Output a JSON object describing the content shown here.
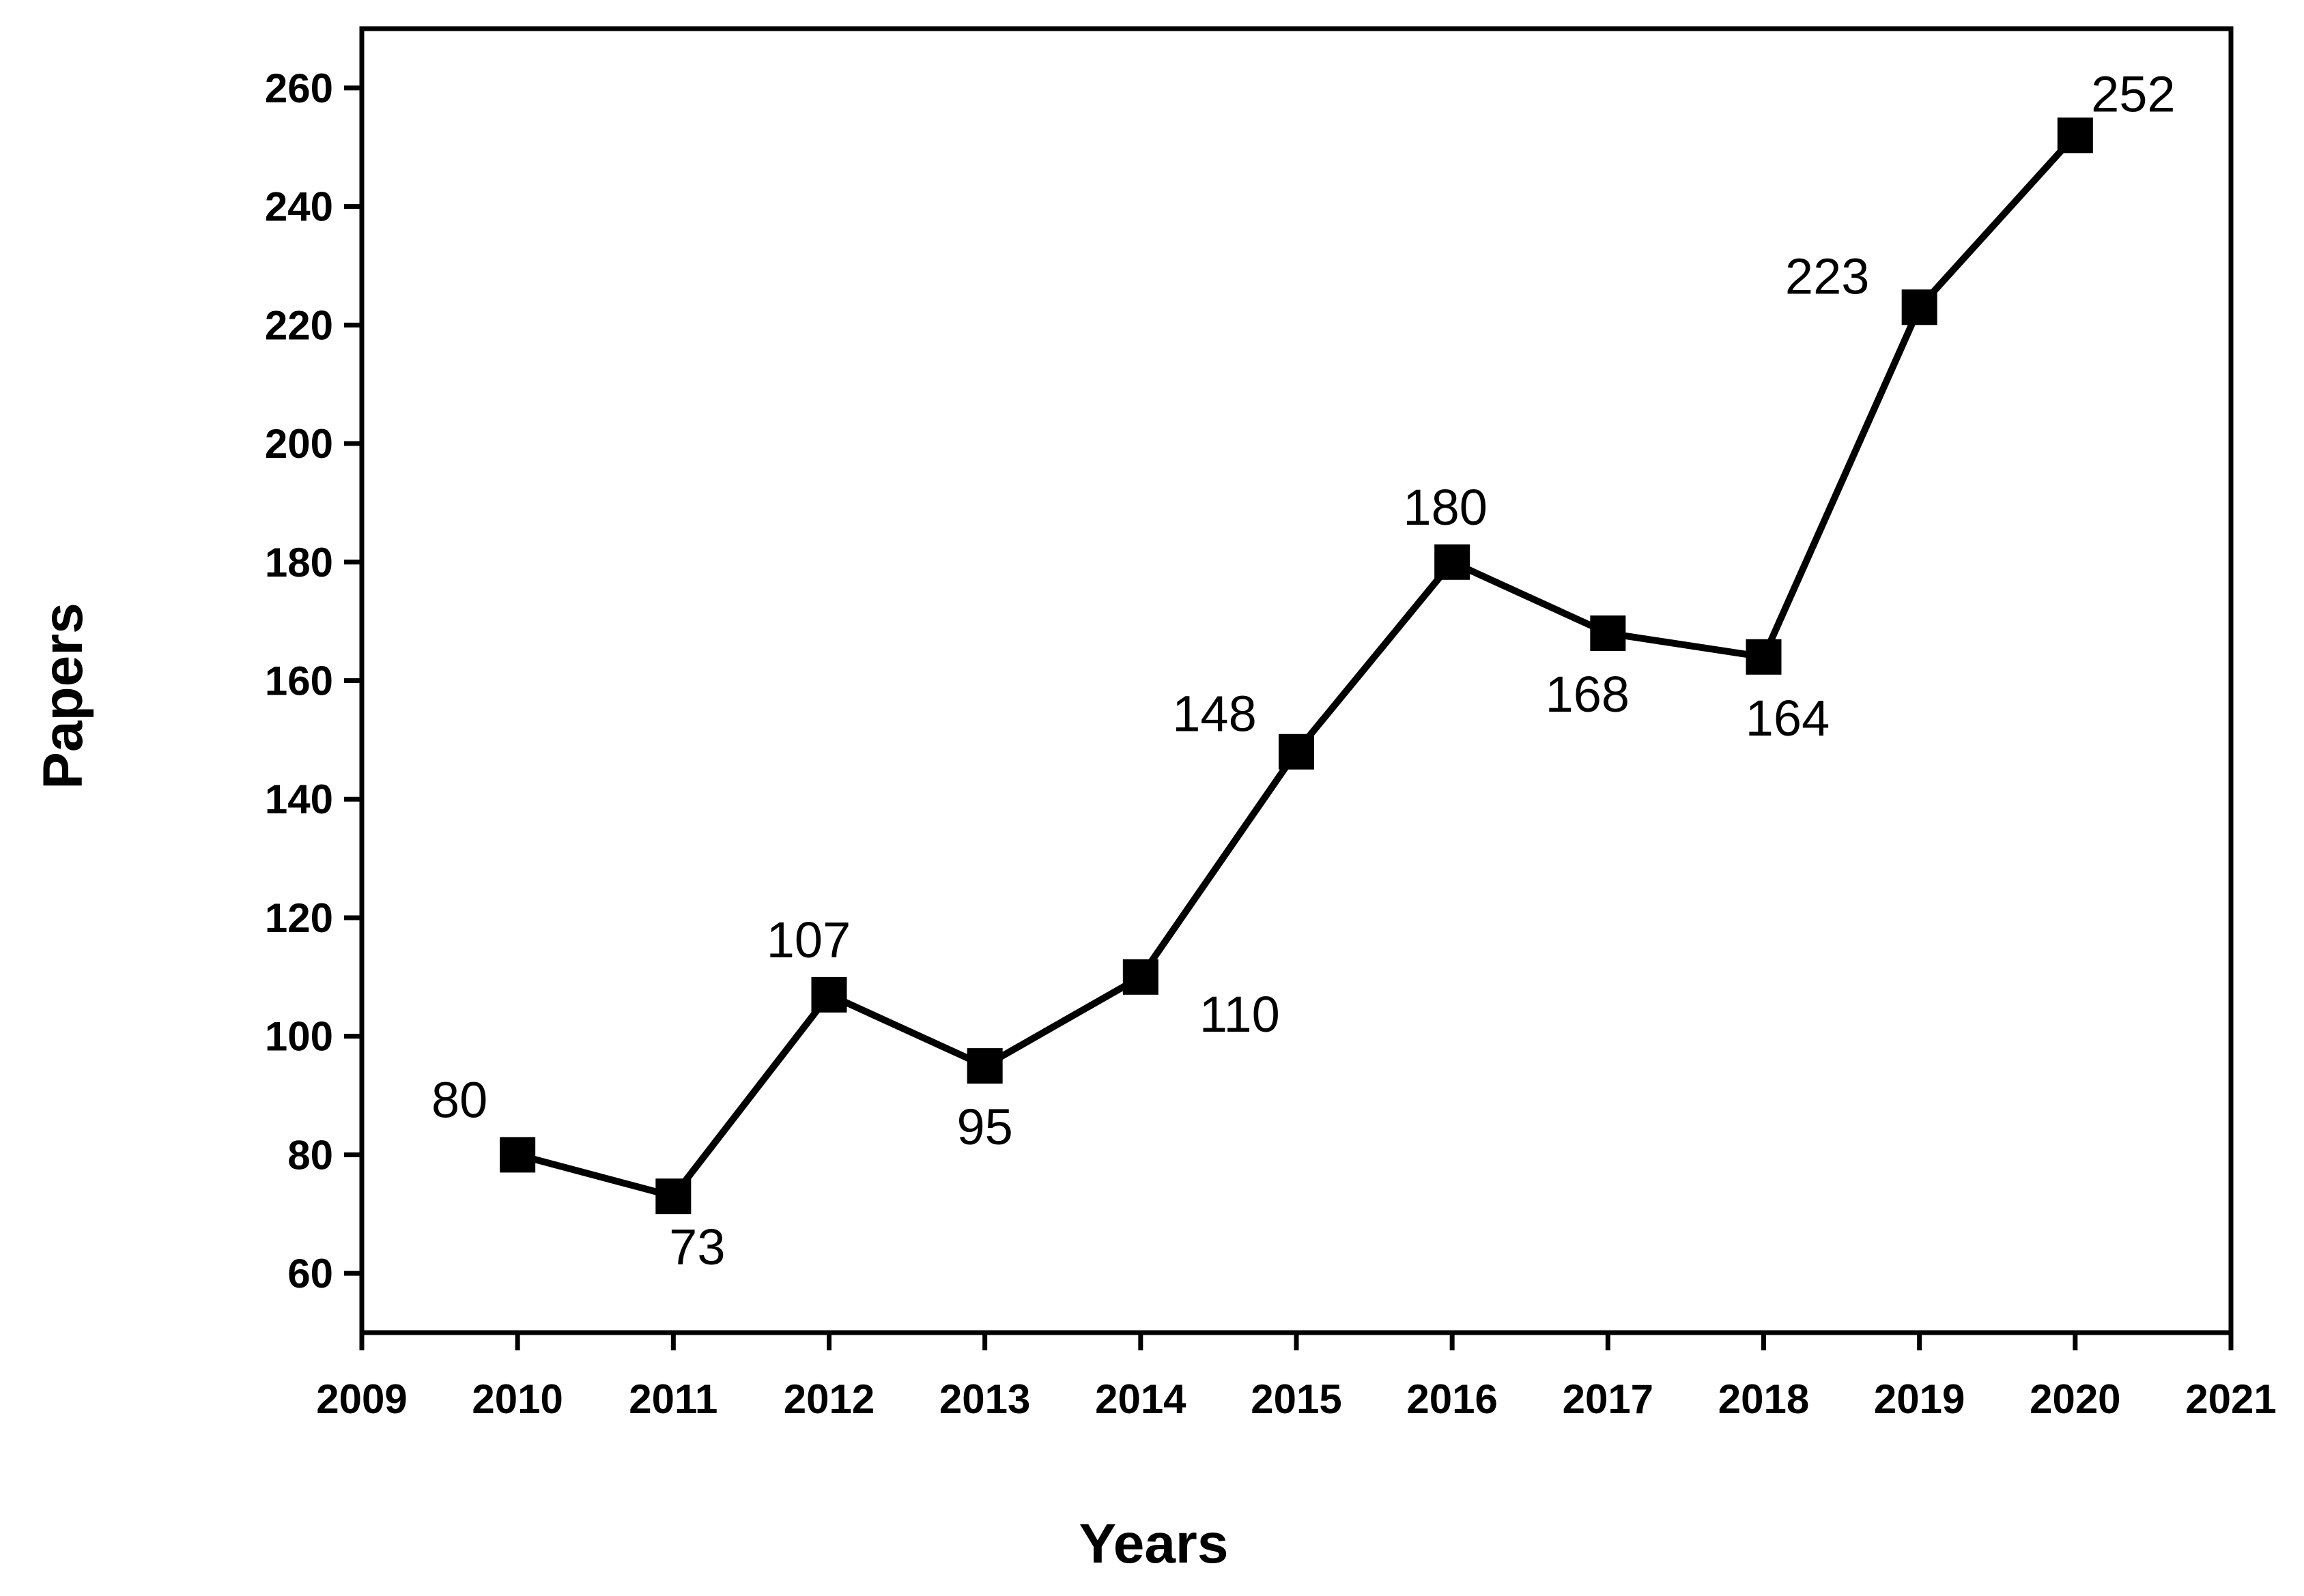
{
  "chart_data": {
    "type": "line",
    "title": "",
    "xlabel": "Years",
    "ylabel": "Papers",
    "xlim": [
      2009,
      2021
    ],
    "ylim": [
      50,
      270
    ],
    "x_ticks": [
      2009,
      2010,
      2011,
      2012,
      2013,
      2014,
      2015,
      2016,
      2017,
      2018,
      2019,
      2020,
      2021
    ],
    "y_ticks": [
      60,
      80,
      100,
      120,
      140,
      160,
      180,
      200,
      220,
      240,
      260
    ],
    "grid": false,
    "legend": "none",
    "marker": "square",
    "line_color": "#000000",
    "series": [
      {
        "x": [
          2010,
          2011,
          2012,
          2013,
          2014,
          2015,
          2016,
          2017,
          2018,
          2019,
          2020
        ],
        "values": [
          80,
          73,
          107,
          95,
          110,
          148,
          180,
          168,
          164,
          223,
          252
        ],
        "data_labels": [
          "80",
          "73",
          "107",
          "95",
          "110",
          "148",
          "180",
          "168",
          "164",
          "223",
          "252"
        ]
      }
    ]
  }
}
